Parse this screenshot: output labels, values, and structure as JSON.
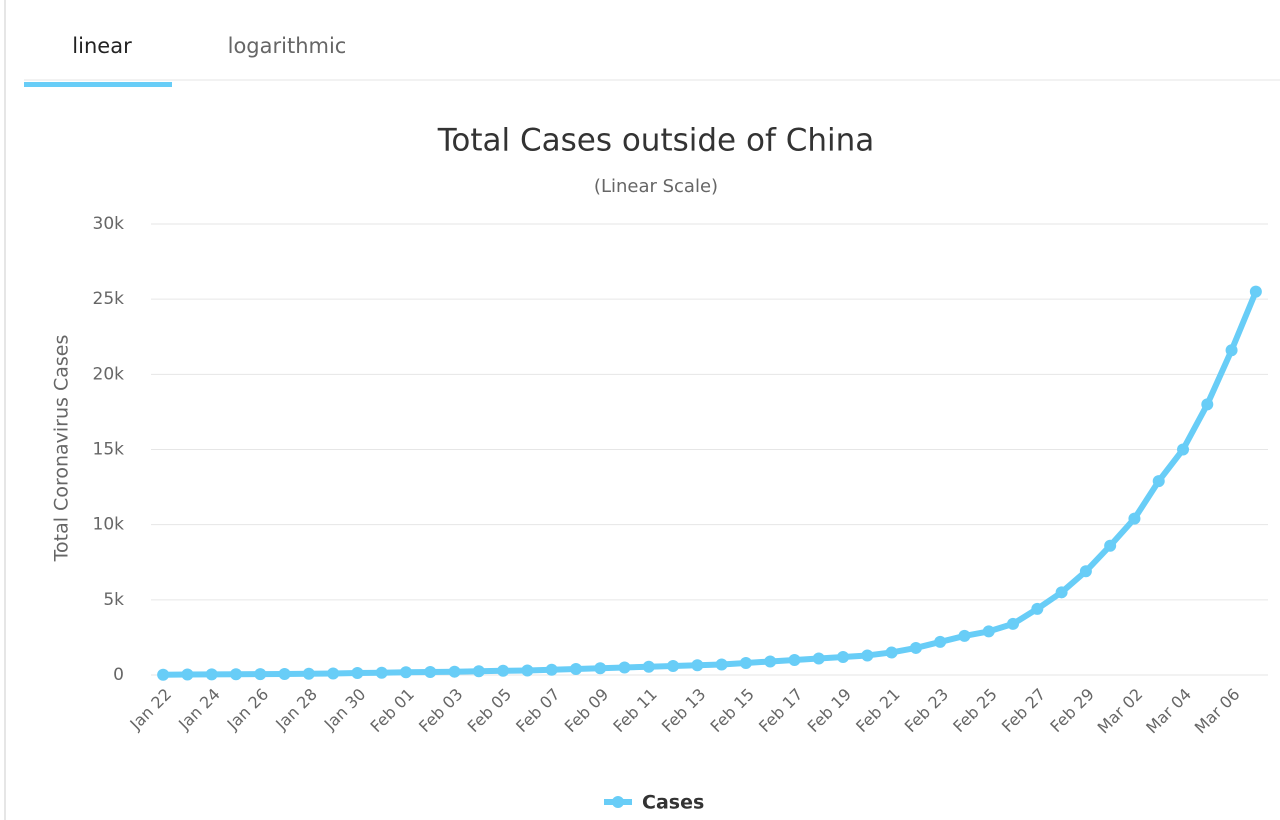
{
  "tabs": [
    "linear",
    "logarithmic"
  ],
  "chart_data": {
    "type": "line",
    "title": "Total Cases outside of China",
    "subtitle": "(Linear Scale)",
    "y_label": "Total Coronavirus Cases",
    "categories": [
      "Jan 22",
      null,
      "Jan 24",
      null,
      "Jan 26",
      null,
      "Jan 28",
      null,
      "Jan 30",
      null,
      "Feb 01",
      null,
      "Feb 03",
      null,
      "Feb 05",
      null,
      "Feb 07",
      null,
      "Feb 09",
      null,
      "Feb 11",
      null,
      "Feb 13",
      null,
      "Feb 15",
      null,
      "Feb 17",
      null,
      "Feb 19",
      null,
      "Feb 21",
      null,
      "Feb 23",
      null,
      "Feb 25",
      null,
      "Feb 27",
      null,
      "Feb 29",
      null,
      "Mar 02",
      null,
      "Mar 04",
      null,
      "Mar 06",
      null
    ],
    "series": [
      {
        "name": "Cases",
        "color": "#68cdf7",
        "values": [
          20,
          30,
          40,
          50,
          60,
          70,
          80,
          100,
          130,
          150,
          180,
          200,
          220,
          250,
          280,
          300,
          350,
          400,
          450,
          500,
          550,
          600,
          650,
          700,
          800,
          900,
          1000,
          1100,
          1200,
          1300,
          1500,
          1800,
          2200,
          2600,
          2900,
          3400,
          4400,
          5500,
          6900,
          8600,
          10400,
          12900,
          15000,
          18000,
          21600,
          25500
        ]
      }
    ],
    "ylim": [
      0,
      30000
    ],
    "yticks": [
      0,
      {
        "value": 5000,
        "label": "5k"
      },
      {
        "value": 10000,
        "label": "10k"
      },
      {
        "value": 15000,
        "label": "15k"
      },
      {
        "value": 20000,
        "label": "20k"
      },
      {
        "value": 25000,
        "label": "25k"
      },
      {
        "value": 30000,
        "label": "30k"
      }
    ],
    "grid": true
  }
}
